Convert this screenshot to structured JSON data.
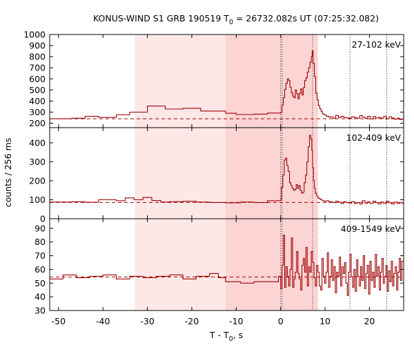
{
  "chart_data": {
    "type": "line",
    "title_prefix": "KONUS-WIND S1 GRB 190519 T",
    "title_sub": "0",
    "title_suffix": " = 26732.082s UT (07:25:32.082)",
    "ylabel": "counts / 256 ms",
    "xlabel_prefix": "T - T",
    "xlabel_sub": "0",
    "xlabel_suffix": ", s",
    "xlim": [
      -52,
      27.7
    ],
    "x_ticks": [
      -50,
      -40,
      -30,
      -20,
      -10,
      0,
      10,
      20
    ],
    "x_tick_labels": [
      "-50",
      "-40",
      "-30",
      "-20",
      "-10",
      "0",
      "10",
      "20"
    ],
    "shaded_regions": [
      {
        "x0": -32.8,
        "x1": -12.4,
        "color": "#fde7e7"
      },
      {
        "x0": -12.4,
        "x1": 8.4,
        "color": "#fcd4d4"
      }
    ],
    "vertical_markers": [
      0.0,
      0.35,
      7.2,
      15.6,
      23.9
    ],
    "line_color": "#a00000",
    "panels": [
      {
        "band": "27-102 keV",
        "ylim": [
          160,
          1000
        ],
        "y_ticks": [
          200,
          300,
          400,
          500,
          600,
          700,
          800,
          900,
          1000
        ],
        "y_tick_labels": [
          "200",
          "300",
          "400",
          "500",
          "600",
          "700",
          "800",
          "900",
          "1000"
        ],
        "background": 240,
        "x": [
          -52,
          -47,
          -44,
          -41,
          -37,
          -34,
          -30,
          -26,
          -22,
          -18,
          -12.4,
          -10,
          -6,
          -3,
          0,
          0.3,
          0.6,
          0.9,
          1.2,
          1.5,
          1.8,
          2.1,
          2.4,
          2.7,
          3.0,
          3.3,
          3.6,
          3.9,
          4.2,
          4.5,
          4.8,
          5.1,
          5.4,
          5.7,
          6.0,
          6.3,
          6.6,
          6.9,
          7.1,
          7.3,
          7.6,
          7.9,
          8.2,
          8.5,
          8.8,
          9.1,
          9.4,
          9.8,
          10.3,
          10.8,
          11.3,
          11.8,
          12.4,
          13.0,
          13.6,
          14.2,
          14.8,
          15.4,
          16.0,
          16.6,
          17.2,
          17.8,
          18.4,
          19.0,
          19.6,
          20.2,
          20.8,
          21.4,
          22.0,
          22.6,
          23.2,
          23.8,
          24.4,
          25.0,
          25.6,
          26.2,
          26.8,
          27.4
        ],
        "y": [
          240,
          245,
          262,
          252,
          275,
          300,
          355,
          328,
          335,
          310,
          290,
          278,
          282,
          292,
          300,
          365,
          430,
          505,
          560,
          600,
          585,
          525,
          475,
          445,
          430,
          500,
          465,
          420,
          470,
          510,
          455,
          520,
          585,
          610,
          660,
          700,
          750,
          800,
          852,
          740,
          620,
          470,
          410,
          360,
          330,
          305,
          285,
          275,
          262,
          255,
          258,
          245,
          270,
          250,
          262,
          252,
          248,
          245,
          258,
          250,
          245,
          268,
          255,
          245,
          262,
          238,
          260,
          248,
          252,
          245,
          262,
          240,
          258,
          248,
          236,
          245,
          232,
          240
        ]
      },
      {
        "band": "102-409 keV",
        "ylim": [
          0,
          480
        ],
        "y_ticks": [
          0,
          100,
          200,
          300,
          400
        ],
        "y_tick_labels": [
          "0",
          "100",
          "200",
          "300",
          "400"
        ],
        "background": 86,
        "x": [
          -52,
          -47,
          -44,
          -41,
          -37,
          -35,
          -33,
          -31,
          -29,
          -27,
          -25,
          -22,
          -19,
          -16,
          -12.4,
          -9,
          -6,
          -3,
          0,
          0.2,
          0.5,
          0.8,
          1.1,
          1.4,
          1.7,
          2.0,
          2.3,
          2.6,
          2.9,
          3.2,
          3.5,
          3.8,
          4.1,
          4.4,
          4.7,
          5.0,
          5.3,
          5.6,
          5.9,
          6.2,
          6.5,
          6.8,
          7.0,
          7.2,
          7.4,
          7.6,
          7.8,
          8.1,
          8.4,
          8.7,
          9.0,
          9.4,
          9.8,
          10.3,
          10.8,
          11.3,
          11.8,
          12.4,
          13.0,
          13.6,
          14.2,
          14.8,
          15.4,
          16.0,
          16.6,
          17.2,
          17.8,
          18.4,
          19.0,
          19.6,
          20.2,
          20.8,
          21.4,
          22.0,
          22.6,
          23.2,
          23.8,
          24.4,
          25.0,
          25.6,
          26.2,
          26.8,
          27.4
        ],
        "y": [
          88,
          90,
          87,
          100,
          95,
          110,
          100,
          112,
          96,
          88,
          90,
          92,
          88,
          86,
          84,
          88,
          85,
          95,
          100,
          165,
          230,
          310,
          320,
          280,
          250,
          190,
          175,
          160,
          150,
          155,
          180,
          160,
          175,
          150,
          135,
          140,
          190,
          230,
          300,
          380,
          440,
          420,
          360,
          270,
          200,
          160,
          135,
          120,
          110,
          105,
          100,
          95,
          92,
          95,
          90,
          88,
          85,
          92,
          88,
          80,
          90,
          85,
          82,
          90,
          80,
          85,
          78,
          95,
          82,
          88,
          80,
          92,
          85,
          78,
          88,
          80,
          92,
          84,
          78,
          88,
          80,
          86,
          80
        ]
      },
      {
        "band": "409-1549 keV",
        "ylim": [
          30,
          97
        ],
        "y_ticks": [
          30,
          40,
          50,
          60,
          70,
          80,
          90
        ],
        "y_tick_labels": [
          "30",
          "40",
          "50",
          "60",
          "70",
          "80",
          "90"
        ],
        "background": 54.5,
        "x": [
          -52,
          -49,
          -46,
          -43,
          -40,
          -37,
          -34,
          -31,
          -28,
          -25,
          -22,
          -19,
          -16,
          -14,
          -12.4,
          -9,
          -6,
          -3,
          -0.5,
          0,
          0.3,
          0.6,
          0.9,
          1.2,
          1.5,
          1.8,
          2.1,
          2.4,
          2.7,
          3.0,
          3.3,
          3.6,
          3.9,
          4.2,
          4.5,
          4.8,
          5.1,
          5.4,
          5.7,
          6.0,
          6.3,
          6.6,
          6.9,
          7.2,
          7.5,
          7.8,
          8.1,
          8.4,
          8.7,
          9.0,
          9.3,
          9.6,
          9.9,
          10.2,
          10.5,
          10.8,
          11.1,
          11.4,
          11.7,
          12.0,
          12.3,
          12.6,
          12.9,
          13.2,
          13.5,
          13.8,
          14.1,
          14.4,
          14.7,
          15.0,
          15.3,
          15.6,
          15.9,
          16.2,
          16.5,
          16.8,
          17.1,
          17.4,
          17.7,
          18.0,
          18.3,
          18.6,
          18.9,
          19.2,
          19.5,
          19.8,
          20.1,
          20.4,
          20.7,
          21.0,
          21.3,
          21.6,
          21.9,
          22.2,
          22.5,
          22.8,
          23.1,
          23.4,
          23.7,
          24.0,
          24.3,
          24.6,
          24.9,
          25.2,
          25.5,
          25.8,
          26.1,
          26.4,
          26.7,
          27.0,
          27.3
        ],
        "y": [
          53,
          56,
          54,
          55,
          56,
          53,
          55,
          54,
          55,
          56,
          53,
          55,
          57,
          54,
          51,
          50,
          51,
          51,
          55,
          46,
          63,
          85,
          47,
          62,
          55,
          48,
          60,
          83,
          47,
          53,
          58,
          73,
          57,
          53,
          45,
          63,
          68,
          58,
          76,
          48,
          62,
          58,
          73,
          65,
          54,
          48,
          63,
          58,
          48,
          45,
          68,
          55,
          50,
          58,
          72,
          47,
          55,
          67,
          52,
          62,
          43,
          58,
          55,
          69,
          48,
          62,
          57,
          65,
          50,
          41,
          58,
          71,
          55,
          47,
          60,
          44,
          67,
          55,
          48,
          62,
          52,
          70,
          46,
          57,
          63,
          42,
          66,
          52,
          58,
          47,
          71,
          55,
          62,
          45,
          58,
          68,
          50,
          55,
          63,
          44,
          59,
          51,
          66,
          48,
          57,
          62,
          45,
          58,
          68,
          52,
          66
        ]
      }
    ]
  }
}
